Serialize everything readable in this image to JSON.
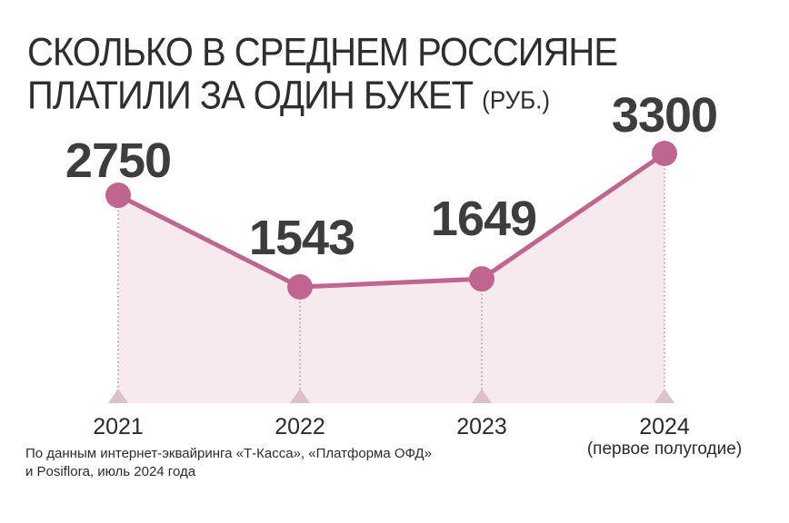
{
  "title": {
    "main": "СКОЛЬКО В СРЕДНЕМ РОССИЯНЕ ПЛАТИЛИ ЗА ОДИН БУКЕТ",
    "unit": "(РУБ.)"
  },
  "chart_data": {
    "type": "line",
    "title": "СКОЛЬКО В СРЕДНЕМ РОССИЯНЕ ПЛАТИЛИ ЗА ОДИН БУКЕТ (РУБ.)",
    "categories": [
      "2021",
      "2022",
      "2023",
      "2024"
    ],
    "category_sublabels": [
      "",
      "",
      "",
      "(первое полугодие)"
    ],
    "values": [
      2750,
      1543,
      1649,
      3300
    ],
    "data_labels": [
      "2750",
      "1543",
      "1649",
      "3300"
    ],
    "xlabel": "",
    "ylabel": "",
    "ylim": [
      0,
      3300
    ],
    "grid": false,
    "area_fill": true,
    "colors": {
      "line": "#c0668e",
      "marker": "#c0668e",
      "area": "#f6eaef",
      "tick_marker": "#dcc0cd",
      "dotted_guide": "#9a8a91",
      "text": "#3d3d3d"
    }
  },
  "source": {
    "line1": "По данным интернет-эквайринга «Т-Касса», «Платформа ОФД»",
    "line2": "и Posiflora, июль 2024 года"
  }
}
